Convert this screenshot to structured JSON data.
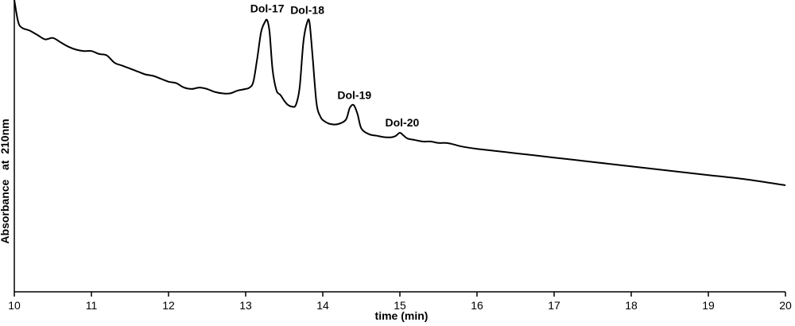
{
  "chart_data": {
    "type": "line",
    "title": "",
    "xlabel": "time (min)",
    "ylabel": "Absorbance   at  210nm",
    "xlim": [
      10,
      20
    ],
    "ylim": [
      0,
      1
    ],
    "x_ticks": [
      10,
      11,
      12,
      13,
      14,
      15,
      16,
      17,
      18,
      19,
      20
    ],
    "grid": false,
    "series": [
      {
        "x": [
          10.0,
          10.05,
          10.1,
          10.2,
          10.3,
          10.4,
          10.5,
          10.6,
          10.7,
          10.8,
          10.9,
          11.0,
          11.1,
          11.2,
          11.3,
          11.4,
          11.5,
          11.6,
          11.7,
          11.8,
          11.9,
          12.0,
          12.1,
          12.2,
          12.3,
          12.4,
          12.5,
          12.6,
          12.7,
          12.8,
          12.9,
          13.0,
          13.05,
          13.1,
          13.15,
          13.2,
          13.25,
          13.28,
          13.31,
          13.35,
          13.4,
          13.45,
          13.5,
          13.55,
          13.6,
          13.65,
          13.7,
          13.75,
          13.8,
          13.83,
          13.87,
          13.92,
          13.97,
          14.02,
          14.1,
          14.2,
          14.3,
          14.35,
          14.4,
          14.45,
          14.5,
          14.6,
          14.7,
          14.8,
          14.9,
          14.95,
          15.0,
          15.05,
          15.1,
          15.2,
          15.3,
          15.4,
          15.5,
          15.6,
          15.7,
          15.8,
          16.0,
          16.5,
          17.0,
          17.5,
          18.0,
          18.5,
          19.0,
          19.5,
          20.0
        ],
        "y": [
          1.0,
          0.925,
          0.905,
          0.895,
          0.88,
          0.865,
          0.87,
          0.855,
          0.84,
          0.83,
          0.825,
          0.825,
          0.815,
          0.81,
          0.785,
          0.775,
          0.765,
          0.755,
          0.745,
          0.74,
          0.73,
          0.72,
          0.715,
          0.7,
          0.695,
          0.7,
          0.695,
          0.685,
          0.68,
          0.68,
          0.69,
          0.695,
          0.7,
          0.72,
          0.8,
          0.89,
          0.925,
          0.93,
          0.89,
          0.76,
          0.69,
          0.675,
          0.655,
          0.64,
          0.635,
          0.64,
          0.7,
          0.86,
          0.925,
          0.92,
          0.8,
          0.645,
          0.6,
          0.585,
          0.575,
          0.575,
          0.59,
          0.63,
          0.64,
          0.61,
          0.56,
          0.54,
          0.535,
          0.53,
          0.53,
          0.535,
          0.545,
          0.535,
          0.525,
          0.52,
          0.515,
          0.515,
          0.51,
          0.51,
          0.505,
          0.498,
          0.49,
          0.475,
          0.46,
          0.445,
          0.43,
          0.415,
          0.4,
          0.385,
          0.365
        ]
      }
    ],
    "annotations": [
      {
        "text": "Dol-17",
        "x": 13.28
      },
      {
        "text": "Dol-18",
        "x": 13.8
      },
      {
        "text": "Dol-19",
        "x": 14.41
      },
      {
        "text": "Dol-20",
        "x": 15.03
      }
    ]
  }
}
